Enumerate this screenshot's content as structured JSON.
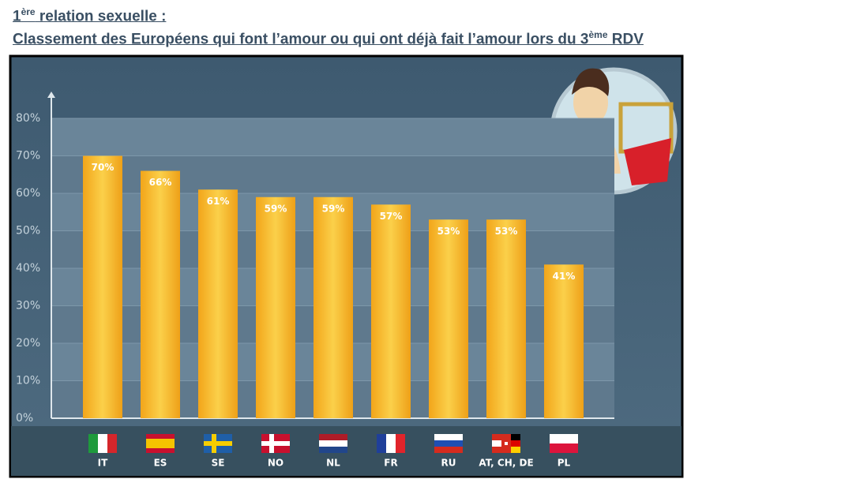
{
  "chart_data": {
    "type": "bar",
    "title": [
      {
        "text": "1"
      },
      {
        "text": "ère",
        "sup": true
      },
      {
        "text": " relation sexuelle :"
      }
    ],
    "subtitle": [
      {
        "text": "Classement des Européens qui font l’amour ou qui ont déjà fait l’amour lors du 3"
      },
      {
        "text": "ème",
        "sup": true
      },
      {
        "text": " RDV"
      }
    ],
    "categories": [
      "IT",
      "ES",
      "SE",
      "NO",
      "NL",
      "FR",
      "RU",
      "AT, CH, DE",
      "PL"
    ],
    "values": [
      70,
      66,
      61,
      59,
      59,
      57,
      53,
      53,
      41
    ],
    "value_labels": [
      "70%",
      "66%",
      "61%",
      "59%",
      "59%",
      "57%",
      "53%",
      "53%",
      "41%"
    ],
    "color": "#f7b82a",
    "ylim": [
      0,
      80
    ],
    "yticks": [
      {
        "value": 0,
        "label": "0%"
      },
      {
        "value": 10,
        "label": "10%"
      },
      {
        "value": 20,
        "label": "20%"
      },
      {
        "value": 30,
        "label": "30%"
      },
      {
        "value": 40,
        "label": "40%"
      },
      {
        "value": 50,
        "label": "50%"
      },
      {
        "value": 60,
        "label": "60%"
      },
      {
        "value": 70,
        "label": "70%"
      },
      {
        "value": 80,
        "label": "80%"
      }
    ],
    "grid": true
  }
}
